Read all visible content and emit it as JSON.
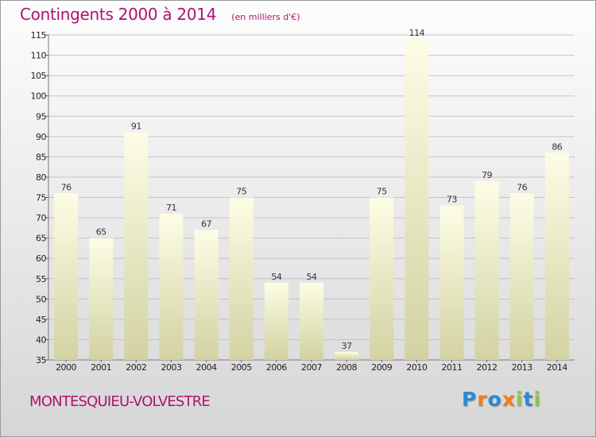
{
  "header": {
    "title": "Contingents 2000 à 2014",
    "subtitle": "(en milliers d'€)"
  },
  "footer": {
    "city": "MONTESQUIEU-VOLVESTRE",
    "brand": "Proxiti"
  },
  "colors": {
    "title": "#b0126e",
    "bar_light": "#fdfde6",
    "bar_dark": "#d2d2a2",
    "grid": "#c4c4c4",
    "axis_text": "#222222"
  },
  "chart_data": {
    "type": "bar",
    "title": "Contingents 2000 à 2014",
    "subtitle": "(en milliers d'€)",
    "categories": [
      "2000",
      "2001",
      "2002",
      "2003",
      "2004",
      "2005",
      "2006",
      "2007",
      "2008",
      "2009",
      "2010",
      "2011",
      "2012",
      "2013",
      "2014"
    ],
    "values": [
      76,
      65,
      91,
      71,
      67,
      75,
      54,
      54,
      37,
      75,
      114,
      73,
      79,
      76,
      86
    ],
    "ylim": [
      35,
      115
    ],
    "yticks": [
      35,
      40,
      45,
      50,
      55,
      60,
      65,
      70,
      75,
      80,
      85,
      90,
      95,
      100,
      105,
      110,
      115
    ],
    "grid": true,
    "data_labels": true
  }
}
